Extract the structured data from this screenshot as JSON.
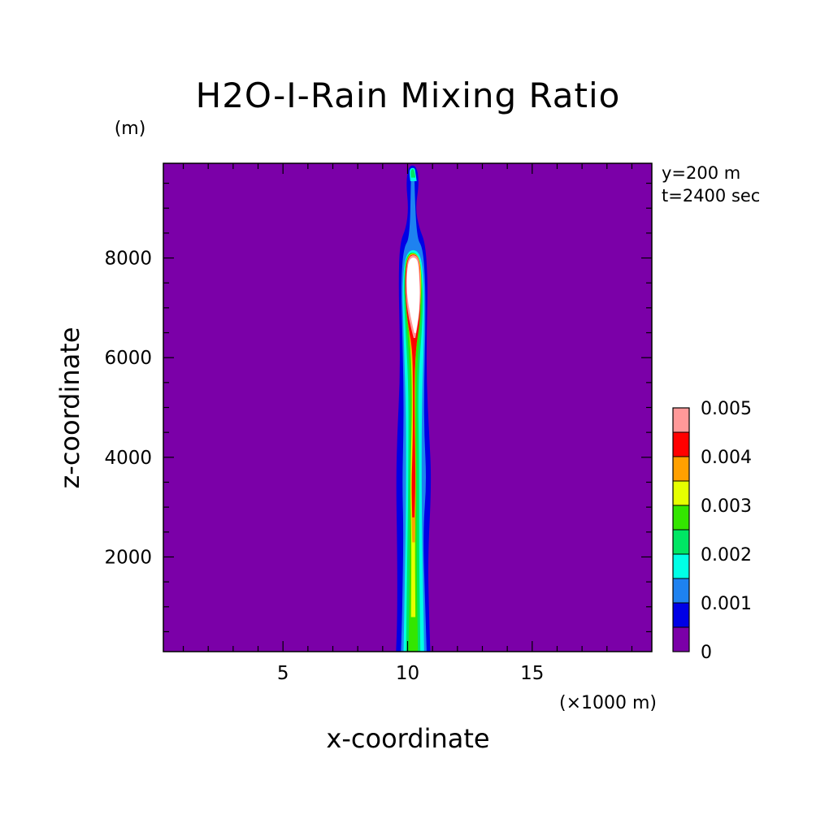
{
  "chart_data": {
    "type": "heatmap",
    "subtype": "filled-contour",
    "title": "H2O-I-Rain Mixing Ratio",
    "xlabel": "x-coordinate",
    "ylabel": "z-coordinate",
    "x_unit": "(×1000 m)",
    "y_unit": "(m)",
    "annotations": [
      "y=200 m",
      "t=2400 sec"
    ],
    "xlim": [
      0.2,
      19.8
    ],
    "ylim": [
      100,
      9900
    ],
    "x_ticks": [
      5,
      10,
      15
    ],
    "x_tick_labels": [
      "5",
      "10",
      "15"
    ],
    "y_ticks": [
      2000,
      4000,
      6000,
      8000
    ],
    "y_tick_labels": [
      "2000",
      "4000",
      "6000",
      "8000"
    ],
    "background_color": "#7b00a8",
    "levels": [
      0,
      0.0005,
      0.001,
      0.0015,
      0.002,
      0.0025,
      0.003,
      0.0035,
      0.004,
      0.0045,
      0.005
    ],
    "colors": [
      "#7b00a8",
      "#0000e6",
      "#1e82f0",
      "#00ffe6",
      "#00e664",
      "#33e600",
      "#e6ff00",
      "#ffa000",
      "#ff0000",
      "#ff9999",
      "#ffffff"
    ],
    "colorbar_labels": [
      {
        "value": 0,
        "label": "0"
      },
      {
        "value": 0.001,
        "label": "0.001"
      },
      {
        "value": 0.002,
        "label": "0.002"
      },
      {
        "value": 0.003,
        "label": "0.003"
      },
      {
        "value": 0.004,
        "label": "0.004"
      },
      {
        "value": 0.005,
        "label": "0.005"
      }
    ],
    "contours": [
      {
        "level": 0.0005,
        "color": "#0000e6",
        "left": [
          [
            9.55,
            100
          ],
          [
            9.6,
            800
          ],
          [
            9.6,
            2000
          ],
          [
            9.55,
            3500
          ],
          [
            9.6,
            4500
          ],
          [
            9.7,
            5500
          ],
          [
            9.7,
            6500
          ],
          [
            9.65,
            7500
          ],
          [
            9.7,
            8300
          ],
          [
            9.95,
            8600
          ],
          [
            10.05,
            9000
          ],
          [
            9.95,
            9500
          ],
          [
            10.05,
            9850
          ]
        ],
        "right": [
          [
            10.9,
            100
          ],
          [
            10.85,
            800
          ],
          [
            10.8,
            2000
          ],
          [
            10.95,
            3500
          ],
          [
            10.85,
            4500
          ],
          [
            10.75,
            5500
          ],
          [
            10.75,
            6500
          ],
          [
            10.8,
            7500
          ],
          [
            10.7,
            8300
          ],
          [
            10.45,
            8600
          ],
          [
            10.3,
            9000
          ],
          [
            10.45,
            9500
          ],
          [
            10.35,
            9850
          ]
        ]
      },
      {
        "level": 0.001,
        "color": "#1e82f0",
        "left": [
          [
            9.75,
            100
          ],
          [
            9.8,
            1000
          ],
          [
            9.85,
            2500
          ],
          [
            9.8,
            3500
          ],
          [
            9.85,
            4500
          ],
          [
            9.85,
            5500
          ],
          [
            9.8,
            6500
          ],
          [
            9.75,
            7500
          ],
          [
            9.85,
            8200
          ],
          [
            10.1,
            8400
          ],
          [
            10.15,
            9600
          ],
          [
            10.15,
            9800
          ]
        ],
        "right": [
          [
            10.75,
            100
          ],
          [
            10.7,
            1000
          ],
          [
            10.6,
            2500
          ],
          [
            10.75,
            3500
          ],
          [
            10.65,
            4500
          ],
          [
            10.65,
            5500
          ],
          [
            10.7,
            6500
          ],
          [
            10.7,
            7500
          ],
          [
            10.6,
            8200
          ],
          [
            10.35,
            8400
          ],
          [
            10.25,
            9600
          ],
          [
            10.3,
            9800
          ]
        ]
      },
      {
        "level": 0.0015,
        "color": "#00ffe6",
        "left": [
          [
            9.85,
            100
          ],
          [
            9.9,
            1500
          ],
          [
            9.95,
            3000
          ],
          [
            9.95,
            5000
          ],
          [
            9.85,
            6500
          ],
          [
            9.8,
            7500
          ],
          [
            9.95,
            8150
          ]
        ],
        "right": [
          [
            10.65,
            100
          ],
          [
            10.6,
            1500
          ],
          [
            10.55,
            3000
          ],
          [
            10.55,
            5000
          ],
          [
            10.65,
            6500
          ],
          [
            10.65,
            7500
          ],
          [
            10.5,
            8150
          ]
        ]
      },
      {
        "level": 0.0015,
        "color": "#00ffe6",
        "left": [
          [
            10.12,
            9550
          ],
          [
            10.08,
            9720
          ],
          [
            10.12,
            9800
          ]
        ],
        "right": [
          [
            10.35,
            9550
          ],
          [
            10.3,
            9720
          ],
          [
            10.28,
            9800
          ]
        ]
      },
      {
        "level": 0.002,
        "color": "#00e664",
        "left": [
          [
            9.95,
            100
          ],
          [
            10.0,
            2000
          ],
          [
            10.05,
            4000
          ],
          [
            10.05,
            5500
          ],
          [
            9.9,
            6800
          ],
          [
            9.85,
            7500
          ],
          [
            9.95,
            8100
          ]
        ],
        "right": [
          [
            10.5,
            100
          ],
          [
            10.45,
            2000
          ],
          [
            10.45,
            4000
          ],
          [
            10.4,
            5500
          ],
          [
            10.6,
            6800
          ],
          [
            10.6,
            7500
          ],
          [
            10.45,
            8100
          ]
        ]
      },
      {
        "level": 0.002,
        "color": "#00e664",
        "left": [
          [
            10.15,
            9620
          ],
          [
            10.13,
            9720
          ],
          [
            10.17,
            9780
          ]
        ],
        "right": [
          [
            10.3,
            9620
          ],
          [
            10.27,
            9720
          ],
          [
            10.23,
            9780
          ]
        ]
      },
      {
        "level": 0.0025,
        "color": "#33e600",
        "left": [
          [
            10.05,
            100
          ],
          [
            10.1,
            1800
          ],
          [
            10.1,
            3200
          ],
          [
            10.15,
            4500
          ],
          [
            10.1,
            5800
          ],
          [
            9.95,
            6900
          ],
          [
            9.9,
            7600
          ],
          [
            9.98,
            8100
          ]
        ],
        "right": [
          [
            10.4,
            100
          ],
          [
            10.35,
            1800
          ],
          [
            10.35,
            3200
          ],
          [
            10.35,
            4500
          ],
          [
            10.35,
            5800
          ],
          [
            10.55,
            6900
          ],
          [
            10.55,
            7600
          ],
          [
            10.42,
            8100
          ]
        ]
      },
      {
        "level": 0.003,
        "color": "#e6ff00",
        "left": [
          [
            10.15,
            800
          ],
          [
            10.17,
            2400
          ],
          [
            10.12,
            3500
          ],
          [
            10.2,
            5000
          ],
          [
            10.15,
            6200
          ],
          [
            9.95,
            7000
          ],
          [
            9.9,
            7600
          ],
          [
            10.0,
            8080
          ]
        ],
        "right": [
          [
            10.3,
            800
          ],
          [
            10.28,
            2400
          ],
          [
            10.32,
            3500
          ],
          [
            10.28,
            5000
          ],
          [
            10.3,
            6200
          ],
          [
            10.5,
            7000
          ],
          [
            10.55,
            7600
          ],
          [
            10.45,
            8080
          ]
        ]
      },
      {
        "level": 0.0035,
        "color": "#ffa000",
        "left": [
          [
            10.2,
            2300
          ],
          [
            10.15,
            3400
          ],
          [
            10.22,
            4600
          ],
          [
            10.2,
            5900
          ],
          [
            10.1,
            6400
          ],
          [
            9.95,
            7000
          ],
          [
            9.9,
            7600
          ],
          [
            10.0,
            8070
          ]
        ],
        "right": [
          [
            10.28,
            2300
          ],
          [
            10.32,
            3400
          ],
          [
            10.28,
            4600
          ],
          [
            10.27,
            5900
          ],
          [
            10.38,
            6400
          ],
          [
            10.5,
            7000
          ],
          [
            10.52,
            7600
          ],
          [
            10.45,
            8070
          ]
        ]
      },
      {
        "level": 0.004,
        "color": "#ff0000",
        "left": [
          [
            10.2,
            2800
          ],
          [
            10.17,
            3500
          ],
          [
            10.22,
            4200
          ],
          [
            10.24,
            5500
          ],
          [
            10.2,
            6200
          ],
          [
            10.05,
            6600
          ],
          [
            9.95,
            7000
          ],
          [
            9.9,
            7600
          ],
          [
            10.02,
            8060
          ]
        ],
        "right": [
          [
            10.26,
            2800
          ],
          [
            10.3,
            3500
          ],
          [
            10.28,
            4200
          ],
          [
            10.26,
            5500
          ],
          [
            10.32,
            6200
          ],
          [
            10.45,
            6600
          ],
          [
            10.5,
            7000
          ],
          [
            10.5,
            7600
          ],
          [
            10.44,
            8060
          ]
        ]
      },
      {
        "level": 0.0045,
        "color": "#ff9999",
        "left": [
          [
            10.25,
            6400
          ],
          [
            10.05,
            6800
          ],
          [
            9.95,
            7200
          ],
          [
            9.95,
            7700
          ],
          [
            10.05,
            8050
          ]
        ],
        "right": [
          [
            10.3,
            6400
          ],
          [
            10.45,
            6800
          ],
          [
            10.5,
            7200
          ],
          [
            10.48,
            7700
          ],
          [
            10.42,
            8050
          ]
        ]
      },
      {
        "level": 0.005,
        "color": "#ffffff",
        "left": [
          [
            10.28,
            6500
          ],
          [
            10.1,
            6900
          ],
          [
            9.98,
            7300
          ],
          [
            9.98,
            7700
          ],
          [
            10.08,
            8000
          ]
        ],
        "right": [
          [
            10.32,
            6500
          ],
          [
            10.45,
            6900
          ],
          [
            10.48,
            7300
          ],
          [
            10.45,
            7700
          ],
          [
            10.38,
            8000
          ]
        ]
      }
    ]
  }
}
